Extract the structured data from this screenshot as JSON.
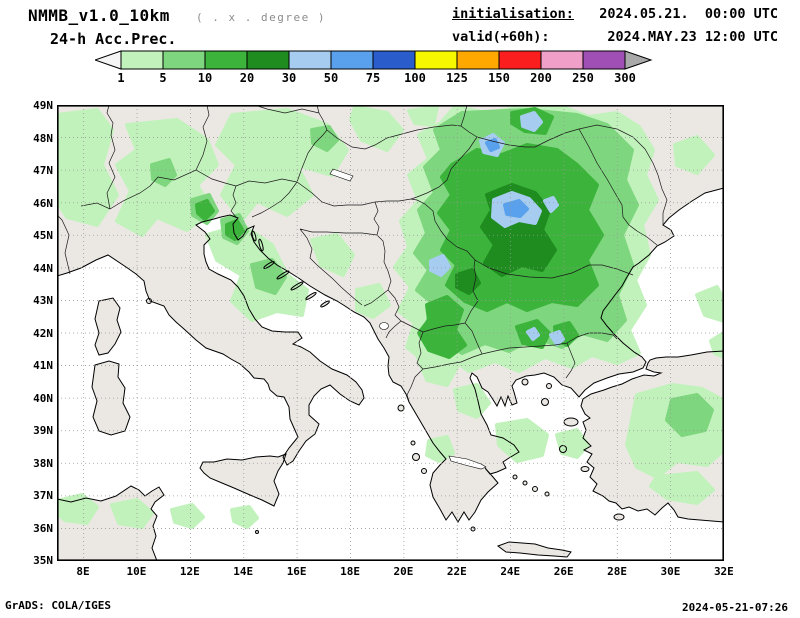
{
  "header": {
    "title": "NMMB_v1.0_10km",
    "note": "( . x . degree )",
    "product": "24-h Acc.Prec.",
    "init_label": "initialisation:",
    "init_value": "2024.05.21.  00:00 UTC",
    "valid_label": "valid(+60h):",
    "valid_value": "2024.MAY.23 12:00 UTC"
  },
  "legend": {
    "tick_labels": [
      "1",
      "5",
      "10",
      "20",
      "30",
      "50",
      "75",
      "100",
      "125",
      "150",
      "200",
      "250",
      "300"
    ],
    "cell_colors": [
      "#c2f2bc",
      "#7ed67e",
      "#3cb43c",
      "#1e8c1e",
      "#a6cdf0",
      "#59a1ec",
      "#2a5ccc",
      "#f7f700",
      "#ffa800",
      "#fa1e1e",
      "#f0a0c8",
      "#a050b4"
    ],
    "left_arrow_color": "#f5f5f5",
    "right_arrow_color": "#a9a9a9"
  },
  "map": {
    "lat_labels": [
      "49N",
      "48N",
      "47N",
      "46N",
      "45N",
      "44N",
      "43N",
      "42N",
      "41N",
      "40N",
      "39N",
      "38N",
      "37N",
      "36N",
      "35N"
    ],
    "lon_labels": [
      "8E",
      "10E",
      "12E",
      "14E",
      "16E",
      "18E",
      "20E",
      "22E",
      "24E",
      "26E",
      "28E",
      "30E",
      "32E"
    ],
    "land_color": "#ebe8e4",
    "sea_color": "#ffffff",
    "grid_color": "#999999"
  },
  "footer": {
    "left": "GrADS: COLA/IGES",
    "right": "2024-05-21-07:26"
  }
}
